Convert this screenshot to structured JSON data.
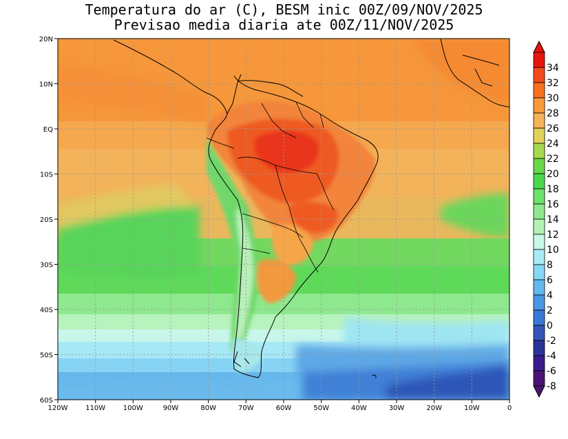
{
  "title": {
    "line1": "Temperatura do ar (C), BESM inic 00Z/09/NOV/2025",
    "line2": "Previsao media diaria ate 00Z/11/NOV/2025"
  },
  "axes": {
    "lon_labels": [
      "120W",
      "110W",
      "100W",
      "90W",
      "80W",
      "70W",
      "60W",
      "50W",
      "40W",
      "30W",
      "20W",
      "10W",
      "0"
    ],
    "lat_labels": [
      "20N",
      "10N",
      "EQ",
      "10S",
      "20S",
      "30S",
      "40S",
      "50S",
      "60S"
    ]
  },
  "colorbar": {
    "levels": [
      "34",
      "32",
      "30",
      "28",
      "26",
      "24",
      "22",
      "20",
      "18",
      "16",
      "14",
      "12",
      "10",
      "8",
      "6",
      "4",
      "2",
      "0",
      "-2",
      "-4",
      "-6",
      "-8"
    ],
    "colors": [
      "#e8140f",
      "#f24a1a",
      "#f7711f",
      "#f89a3a",
      "#f5b35a",
      "#e2d25c",
      "#a6d94f",
      "#69d84a",
      "#4ad94c",
      "#6ee06e",
      "#8fe88f",
      "#b3f2b3",
      "#c8f8e8",
      "#a9ecf7",
      "#86d7f5",
      "#62b9ee",
      "#4a98e3",
      "#3a78d6",
      "#3454b6",
      "#2a3398",
      "#3a1a8c",
      "#4a1474"
    ]
  },
  "map": {
    "region": "South America",
    "lon_range": [
      -120,
      0
    ],
    "lat_range": [
      -60,
      20
    ]
  }
}
